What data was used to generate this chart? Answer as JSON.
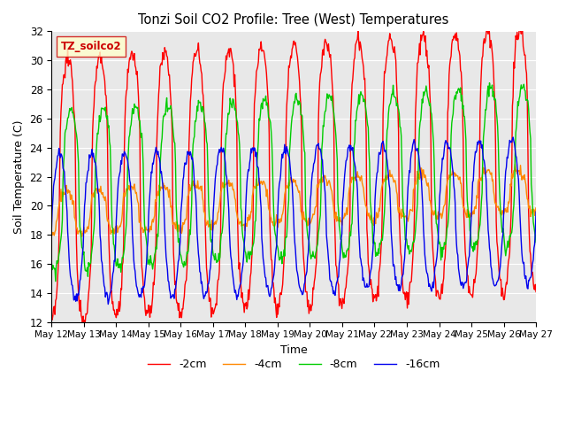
{
  "title": "Tonzi Soil CO2 Profile: Tree (West) Temperatures",
  "xlabel": "Time",
  "ylabel": "Soil Temperature (C)",
  "ylim": [
    12,
    32
  ],
  "yticks": [
    12,
    14,
    16,
    18,
    20,
    22,
    24,
    26,
    28,
    30,
    32
  ],
  "legend_label": "TZ_soilco2",
  "series_labels": [
    "-2cm",
    "-4cm",
    "-8cm",
    "-16cm"
  ],
  "series_colors": [
    "#ff0000",
    "#ff8800",
    "#00cc00",
    "#0000ee"
  ],
  "background_color": "#e8e8e8",
  "x_tick_labels": [
    "May 12",
    "May 13",
    "May 14",
    "May 15",
    "May 16",
    "May 17",
    "May 18",
    "May 19",
    "May 20",
    "May 21",
    "May 22",
    "May 23",
    "May 24",
    "May 25",
    "May 26",
    "May 27"
  ],
  "grid_color": "#ffffff",
  "fig_width": 6.4,
  "fig_height": 4.8,
  "dpi": 100
}
